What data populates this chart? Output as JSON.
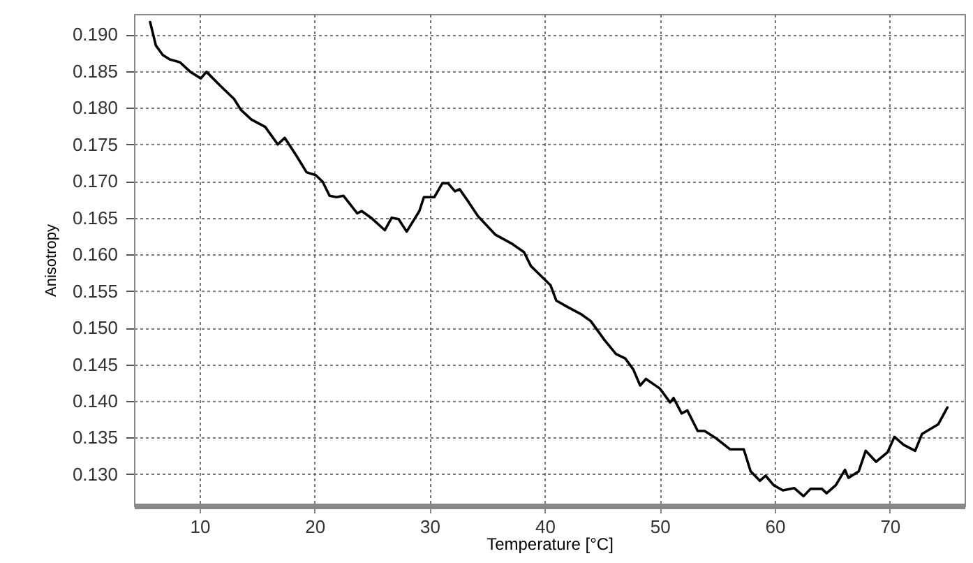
{
  "chart_data": {
    "type": "line",
    "xlabel": "Temperature [°C]",
    "ylabel": "Anisotropy",
    "xlim": [
      4.3,
      76.5
    ],
    "ylim": [
      0.1257,
      0.1928
    ],
    "xticks": [
      10,
      20,
      30,
      40,
      50,
      60,
      70
    ],
    "yticks": [
      {
        "value": 0.13,
        "label": "0.130"
      },
      {
        "value": 0.135,
        "label": "0.135"
      },
      {
        "value": 0.14,
        "label": "0.140"
      },
      {
        "value": 0.145,
        "label": "0.145"
      },
      {
        "value": 0.15,
        "label": "0.150"
      },
      {
        "value": 0.155,
        "label": "0.155"
      },
      {
        "value": 0.16,
        "label": "0.160"
      },
      {
        "value": 0.165,
        "label": "0.165"
      },
      {
        "value": 0.17,
        "label": "0.170"
      },
      {
        "value": 0.175,
        "label": "0.175"
      },
      {
        "value": 0.18,
        "label": "0.180"
      },
      {
        "value": 0.185,
        "label": "0.185"
      },
      {
        "value": 0.19,
        "label": "0.190"
      }
    ],
    "grid": true,
    "marker": "none",
    "line_style": "solid",
    "series": [
      {
        "color": "#000000",
        "x": [
          5.7,
          6.2,
          6.8,
          7.4,
          8.3,
          9.2,
          10.1,
          10.6,
          11.8,
          13.0,
          13.6,
          14.5,
          15.7,
          16.8,
          17.4,
          18.4,
          19.3,
          20.1,
          20.7,
          21.3,
          21.9,
          22.5,
          23.7,
          24.1,
          24.9,
          26.1,
          26.7,
          27.3,
          28.0,
          29.1,
          29.5,
          30.4,
          31.1,
          31.6,
          32.2,
          32.6,
          33.4,
          34.2,
          35.7,
          37.2,
          38.2,
          38.8,
          40.5,
          41.0,
          42.0,
          43.2,
          44.0,
          45.2,
          46.2,
          47.0,
          47.7,
          48.3,
          48.8,
          50.0,
          50.9,
          51.2,
          51.9,
          52.4,
          53.3,
          53.9,
          54.9,
          56.1,
          57.3,
          57.9,
          58.7,
          59.2,
          59.9,
          60.7,
          61.7,
          62.5,
          63.1,
          64.1,
          64.5,
          65.3,
          66.1,
          66.4,
          67.3,
          67.9,
          68.8,
          69.8,
          70.4,
          71.2,
          72.2,
          72.8,
          74.2,
          75.0
        ],
        "values": [
          0.1917,
          0.1885,
          0.1872,
          0.1866,
          0.1862,
          0.1849,
          0.184,
          0.1849,
          0.183,
          0.1812,
          0.1797,
          0.1784,
          0.1774,
          0.175,
          0.1759,
          0.1735,
          0.1712,
          0.1708,
          0.1699,
          0.168,
          0.1678,
          0.168,
          0.1656,
          0.1659,
          0.165,
          0.1633,
          0.165,
          0.1648,
          0.1631,
          0.1659,
          0.1678,
          0.1678,
          0.1697,
          0.1697,
          0.1686,
          0.1689,
          0.1671,
          0.1652,
          0.1627,
          0.1614,
          0.1603,
          0.1584,
          0.1558,
          0.1537,
          0.1528,
          0.1518,
          0.1509,
          0.1483,
          0.1464,
          0.1458,
          0.1443,
          0.1421,
          0.143,
          0.1417,
          0.1398,
          0.1404,
          0.1383,
          0.1387,
          0.1359,
          0.1359,
          0.1349,
          0.1334,
          0.1334,
          0.1304,
          0.1291,
          0.1298,
          0.1285,
          0.1278,
          0.1281,
          0.127,
          0.128,
          0.128,
          0.1274,
          0.1285,
          0.1306,
          0.1295,
          0.1304,
          0.1332,
          0.1317,
          0.133,
          0.1351,
          0.134,
          0.1332,
          0.1355,
          0.1368,
          0.1391
        ]
      }
    ]
  }
}
